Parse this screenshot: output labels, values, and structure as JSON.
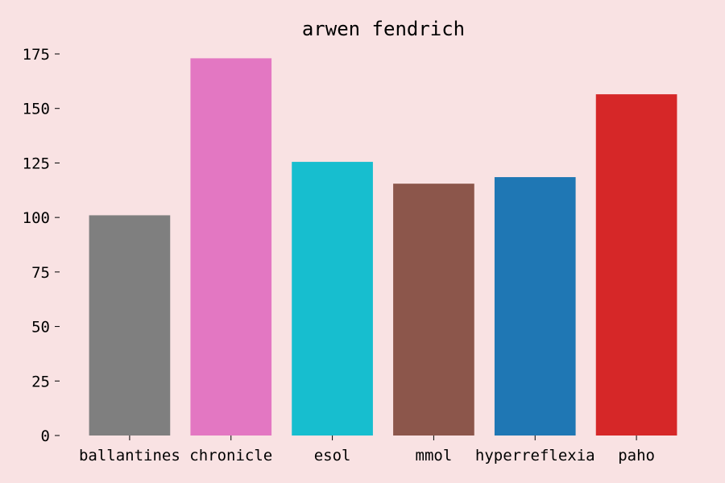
{
  "chart_data": {
    "type": "bar",
    "title": "arwen fendrich",
    "xlabel": "",
    "ylabel": "",
    "categories": [
      "ballantines",
      "chronicle",
      "esol",
      "mmol",
      "hyperreflexia",
      "paho"
    ],
    "values": [
      101,
      173,
      125.5,
      115.5,
      118.5,
      156.5
    ],
    "colors": [
      "#7f7f7f",
      "#e377c2",
      "#17becf",
      "#8c564b",
      "#1f77b4",
      "#d62728"
    ],
    "ylim": [
      0,
      175
    ],
    "yticks": [
      0,
      25,
      50,
      75,
      100,
      125,
      150,
      175
    ],
    "grid": false,
    "legend": "none",
    "background": "#f9e2e3"
  }
}
